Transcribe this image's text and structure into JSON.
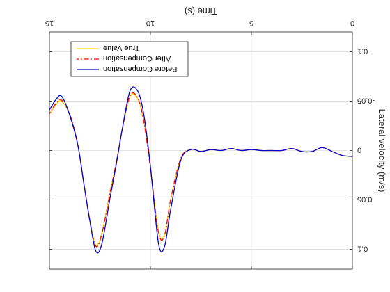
{
  "chart_data": {
    "type": "line",
    "title": "",
    "xlabel": "Time (s)",
    "ylabel": "Lateral velocity (m/s)",
    "xlim": [
      0,
      15
    ],
    "ylim": [
      -0.12,
      0.12
    ],
    "x_axis_inverted": true,
    "y_axis_inverted": true,
    "xticks": [
      0,
      5,
      10,
      15
    ],
    "xtick_labels": [
      "0",
      "5",
      "10",
      "15"
    ],
    "yticks": [
      -0.1,
      -0.05,
      0,
      0.05,
      0.1
    ],
    "ytick_labels": [
      "-0.1",
      "-0.05",
      "0",
      "0.05",
      "0.1"
    ],
    "grid": true,
    "legend_position": "top-left",
    "series": [
      {
        "name": "True Value",
        "color": "#ffd700",
        "style": "solid",
        "x": [
          0,
          0.5,
          1.0,
          1.5,
          2.0,
          2.5,
          3.0,
          3.5,
          4.0,
          4.5,
          5.0,
          5.5,
          6.0,
          6.5,
          7.0,
          7.5,
          8.0,
          8.5,
          9.0,
          9.3,
          9.6,
          10.0,
          10.3,
          10.6,
          11.0,
          11.4,
          11.7,
          12.0,
          12.4,
          12.7,
          13.0,
          13.3,
          13.6,
          14.0,
          14.4,
          14.7,
          15.0
        ],
        "y": [
          0.006,
          0.005,
          0.001,
          -0.003,
          0.001,
          0.001,
          -0.002,
          0.0,
          0.0,
          0.0,
          -0.001,
          0.0,
          -0.002,
          0.0,
          -0.001,
          0.001,
          -0.001,
          0.008,
          0.05,
          0.085,
          0.082,
          0.017,
          -0.026,
          -0.051,
          -0.055,
          -0.021,
          0.013,
          0.042,
          0.083,
          0.096,
          0.07,
          0.033,
          -0.007,
          -0.036,
          -0.05,
          -0.046,
          -0.037
        ]
      },
      {
        "name": "After Compensation",
        "color": "#ff0000",
        "style": "dashdot",
        "x": [
          0,
          0.5,
          1.0,
          1.5,
          2.0,
          2.5,
          3.0,
          3.5,
          4.0,
          4.5,
          5.0,
          5.5,
          6.0,
          6.5,
          7.0,
          7.5,
          8.0,
          8.5,
          9.0,
          9.3,
          9.6,
          10.0,
          10.3,
          10.6,
          11.0,
          11.4,
          11.7,
          12.0,
          12.4,
          12.7,
          13.0,
          13.3,
          13.6,
          14.0,
          14.4,
          14.7,
          15.0
        ],
        "y": [
          0.006,
          0.005,
          0.001,
          -0.003,
          0.001,
          0.001,
          -0.002,
          0.0,
          0.0,
          0.0,
          -0.001,
          0.0,
          -0.002,
          0.0,
          -0.001,
          0.001,
          -0.001,
          0.008,
          0.05,
          0.086,
          0.083,
          0.018,
          -0.026,
          -0.052,
          -0.056,
          -0.021,
          0.013,
          0.043,
          0.084,
          0.097,
          0.071,
          0.033,
          -0.007,
          -0.037,
          -0.051,
          -0.047,
          -0.037
        ]
      },
      {
        "name": "Before Compensation",
        "color": "#0000cd",
        "style": "solid",
        "x": [
          0,
          0.5,
          1.0,
          1.5,
          2.0,
          2.5,
          3.0,
          3.5,
          4.0,
          4.5,
          5.0,
          5.5,
          6.0,
          6.5,
          7.0,
          7.5,
          8.0,
          8.5,
          9.0,
          9.3,
          9.6,
          10.0,
          10.3,
          10.6,
          11.0,
          11.4,
          11.7,
          12.0,
          12.4,
          12.7,
          13.0,
          13.3,
          13.6,
          14.0,
          14.4,
          14.7,
          15.0
        ],
        "y": [
          0.006,
          0.005,
          0.001,
          -0.003,
          0.001,
          0.001,
          -0.002,
          0.0,
          0.0,
          0.0,
          -0.001,
          0.0,
          -0.002,
          0.0,
          -0.001,
          0.001,
          -0.001,
          0.01,
          0.06,
          0.097,
          0.094,
          0.016,
          -0.033,
          -0.059,
          -0.061,
          -0.021,
          0.015,
          0.048,
          0.094,
          0.102,
          0.071,
          0.033,
          -0.006,
          -0.036,
          -0.055,
          -0.051,
          -0.041
        ]
      }
    ]
  }
}
